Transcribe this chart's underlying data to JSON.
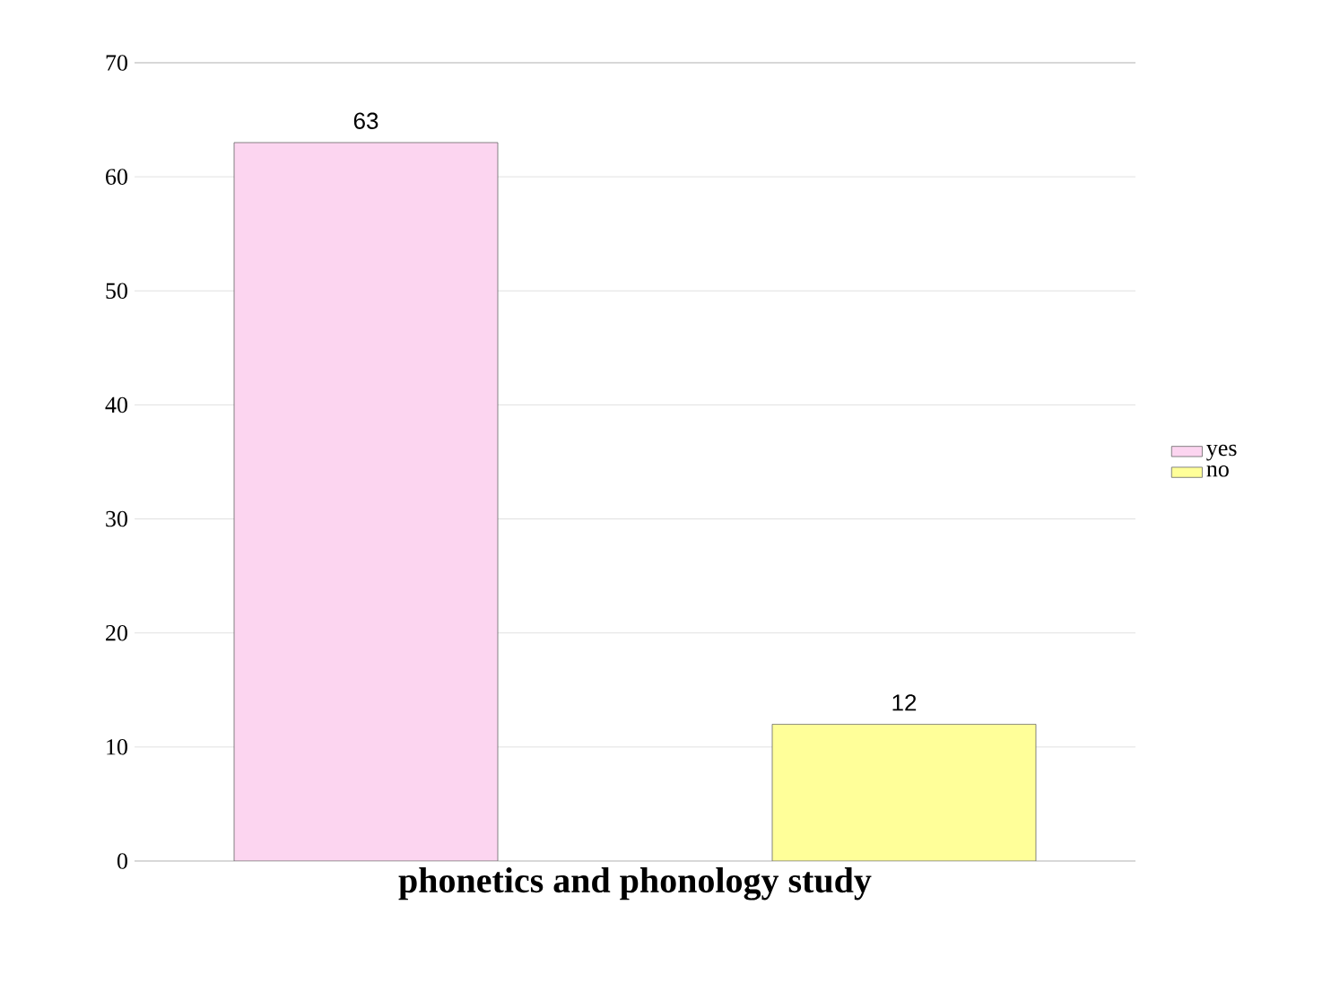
{
  "chart_data": {
    "type": "bar",
    "categories": [
      "**phonetics and phonology study**"
    ],
    "series": [
      {
        "name": "yes",
        "color": "#fcd5f0",
        "values": [
          63
        ]
      },
      {
        "name": "no",
        "color": "#ffff99",
        "values": [
          12
        ]
      }
    ],
    "ylim": [
      0,
      70
    ],
    "yticks": [
      0,
      10,
      20,
      30,
      40,
      50,
      60,
      70
    ],
    "grid": "y",
    "legend": "right",
    "data_labels": true
  }
}
